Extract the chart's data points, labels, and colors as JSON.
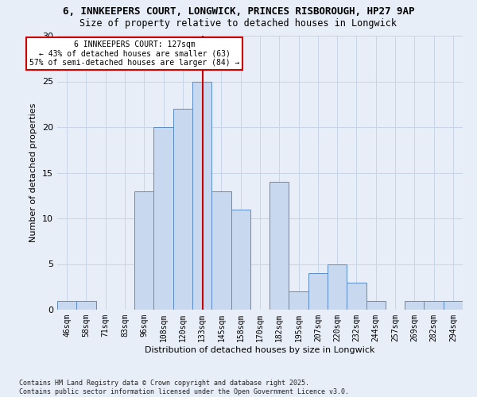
{
  "title1": "6, INNKEEPERS COURT, LONGWICK, PRINCES RISBOROUGH, HP27 9AP",
  "title2": "Size of property relative to detached houses in Longwick",
  "xlabel": "Distribution of detached houses by size in Longwick",
  "ylabel": "Number of detached properties",
  "bin_labels": [
    "46sqm",
    "58sqm",
    "71sqm",
    "83sqm",
    "96sqm",
    "108sqm",
    "120sqm",
    "133sqm",
    "145sqm",
    "158sqm",
    "170sqm",
    "182sqm",
    "195sqm",
    "207sqm",
    "220sqm",
    "232sqm",
    "244sqm",
    "257sqm",
    "269sqm",
    "282sqm",
    "294sqm"
  ],
  "bar_heights": [
    1,
    1,
    0,
    0,
    13,
    20,
    22,
    25,
    13,
    11,
    0,
    14,
    2,
    4,
    5,
    3,
    1,
    0,
    1,
    1,
    1
  ],
  "bar_color": "#c8d9ef",
  "bar_edge_color": "#5b8cc8",
  "vline_color": "#cc0000",
  "annotation_text": "6 INNKEEPERS COURT: 127sqm\n← 43% of detached houses are smaller (63)\n57% of semi-detached houses are larger (84) →",
  "annotation_box_color": "#ffffff",
  "annotation_box_edge": "#cc0000",
  "grid_color": "#c8d4e8",
  "background_color": "#e8eef8",
  "footer": "Contains HM Land Registry data © Crown copyright and database right 2025.\nContains public sector information licensed under the Open Government Licence v3.0.",
  "ylim": [
    0,
    30
  ],
  "yticks": [
    0,
    5,
    10,
    15,
    20,
    25,
    30
  ]
}
